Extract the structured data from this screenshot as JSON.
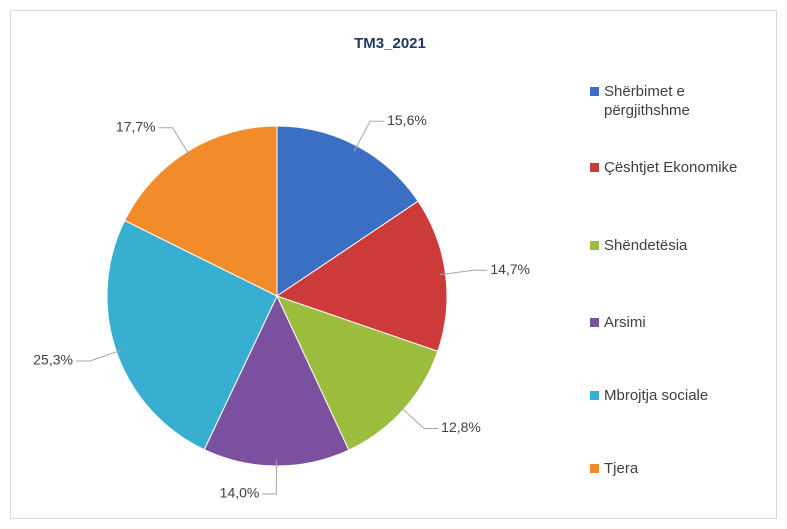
{
  "chart_data": {
    "type": "pie",
    "title": "TM3_2021",
    "categories": [
      "Shërbimet e përgjithshme",
      "Çështjet Ekonomike",
      "Shëndetësia",
      "Arsimi",
      "Mbrojtja sociale",
      "Tjera"
    ],
    "values": [
      15.6,
      14.7,
      12.8,
      14.0,
      25.3,
      17.7
    ],
    "value_labels": [
      "15,6%",
      "14,7%",
      "12,8%",
      "14,0%",
      "25,3%",
      "17,7%"
    ],
    "colors": [
      "#3a6fc4",
      "#cc3a3a",
      "#9cbd3e",
      "#7b519f",
      "#38aed0",
      "#f28b2a"
    ],
    "legend": "right"
  }
}
